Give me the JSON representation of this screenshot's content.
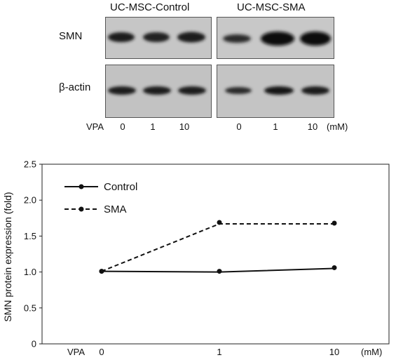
{
  "blot": {
    "group_labels": [
      "UC-MSC-Control",
      "UC-MSC-SMA"
    ],
    "row_labels": [
      "SMN",
      "β-actin"
    ],
    "vpa_label": "VPA",
    "lane_labels": [
      "0",
      "1",
      "10",
      "0",
      "1",
      "10"
    ],
    "unit": "(mM)"
  },
  "chart_data": {
    "type": "line",
    "x": [
      "0",
      "1",
      "10"
    ],
    "xlabel_prefix": "VPA",
    "xlabel_unit": "(mM)",
    "ylabel": "SMN protein expression (fold)",
    "ylim": [
      0,
      2.5
    ],
    "yticks": [
      "0",
      "0.5",
      "1.0",
      "1.5",
      "2.0",
      "2.5"
    ],
    "series": [
      {
        "name": "Control",
        "values": [
          1.01,
          1.0,
          1.05
        ],
        "style": "solid",
        "marker_offsets": [
          0,
          0.01,
          0.01
        ]
      },
      {
        "name": "SMA",
        "values": [
          1.01,
          1.67,
          1.67
        ],
        "style": "dashed",
        "marker_offsets": [
          0,
          0.02,
          0.01
        ]
      }
    ],
    "legend": "top-left",
    "grid": false
  }
}
